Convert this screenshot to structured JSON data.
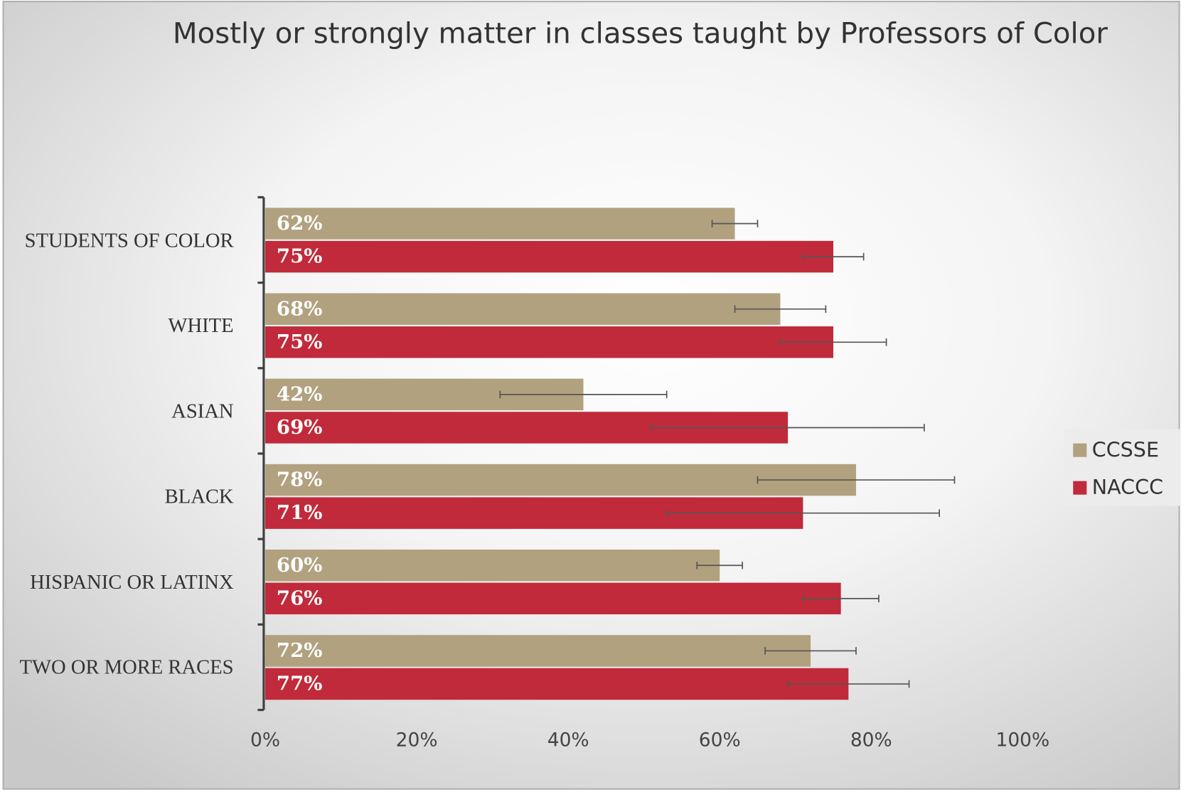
{
  "chart_data": {
    "type": "bar",
    "orientation": "horizontal",
    "title": "Mostly or strongly matter in classes taught by Professors of Color",
    "categories": [
      "STUDENTS OF COLOR",
      "WHITE",
      "ASIAN",
      "BLACK",
      "HISPANIC OR LATINX",
      "TWO OR MORE RACES"
    ],
    "series": [
      {
        "name": "CCSSE",
        "color": "#b1a17f",
        "values": [
          62,
          68,
          42,
          78,
          60,
          72
        ],
        "value_labels": [
          "62%",
          "68%",
          "42%",
          "78%",
          "60%",
          "72%"
        ],
        "errors": [
          3,
          6,
          11,
          13,
          3,
          6
        ]
      },
      {
        "name": "NACCC",
        "color": "#c12a3a",
        "values": [
          75,
          75,
          69,
          71,
          76,
          77
        ],
        "value_labels": [
          "75%",
          "75%",
          "69%",
          "71%",
          "76%",
          "77%"
        ],
        "errors": [
          4,
          7,
          18,
          18,
          5,
          8
        ]
      }
    ],
    "xlim": [
      0,
      100
    ],
    "xticks": [
      {
        "value": 0,
        "label": "0%"
      },
      {
        "value": 20,
        "label": "20%"
      },
      {
        "value": 40,
        "label": "40%"
      },
      {
        "value": 60,
        "label": "60%"
      },
      {
        "value": 80,
        "label": "80%"
      },
      {
        "value": 100,
        "label": "100%"
      }
    ],
    "legend": "right"
  }
}
